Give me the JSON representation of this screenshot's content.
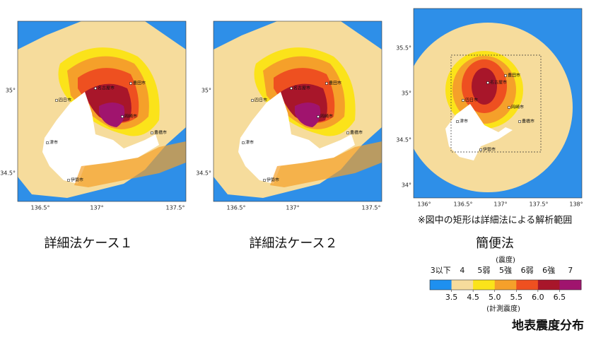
{
  "panels": [
    {
      "caption": "詳細法ケース１",
      "xticks": [
        "136.5°",
        "137°",
        "137.5°"
      ],
      "yticks": [
        "35°",
        "34.5°"
      ],
      "cities": [
        "四日市",
        "津市",
        "伊勢市",
        "豊橋市",
        "豊田市",
        "岡崎市",
        "名古屋市"
      ]
    },
    {
      "caption": "詳細法ケース２",
      "xticks": [
        "136.5°",
        "137°",
        "137.5°"
      ],
      "yticks": [
        "35°",
        "34.5°"
      ],
      "cities": [
        "四日市",
        "津市",
        "伊勢市",
        "豊橋市",
        "豊田市",
        "岡崎市",
        "名古屋市"
      ]
    },
    {
      "caption": "簡便法",
      "xticks": [
        "136°",
        "136.5°",
        "137°",
        "137.5°",
        "138°"
      ],
      "yticks": [
        "35.5°",
        "35°",
        "34.5°",
        "34°"
      ],
      "cities": [
        "四日市",
        "津市",
        "伊勢市",
        "豊橋市",
        "豊田市",
        "岡崎市",
        "名古屋市"
      ]
    }
  ],
  "note": "※図中の矩形は詳細法による解析範囲",
  "legend": {
    "title": "(震度)",
    "classes": [
      "3以下",
      "4",
      "5弱",
      "5強",
      "6弱",
      "6強",
      "7"
    ],
    "colors": [
      "#1e90f0",
      "#f6dc9c",
      "#fbe31a",
      "#f5a02a",
      "#ee5020",
      "#a8162a",
      "#a0146e"
    ],
    "scale": [
      "3.5",
      "4.5",
      "5.0",
      "5.5",
      "6.0",
      "6.5"
    ],
    "scale_title": "(計測震度)"
  },
  "title": "地表震度分布"
}
